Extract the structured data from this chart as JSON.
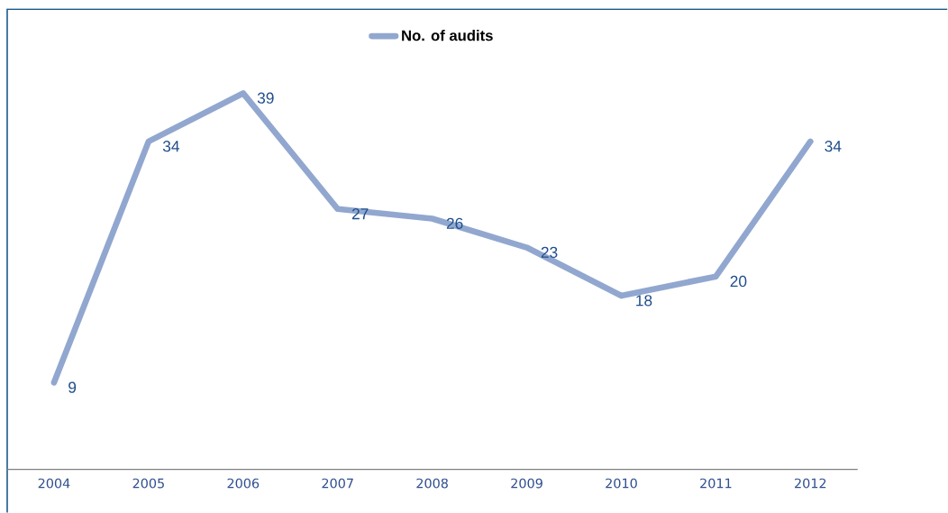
{
  "chart_data": {
    "type": "line",
    "categories": [
      "2004",
      "2005",
      "2006",
      "2007",
      "2008",
      "2009",
      "2010",
      "2011",
      "2012"
    ],
    "series": [
      {
        "name": "No. of audits",
        "color": "#91a7cf",
        "values": [
          9,
          34,
          39,
          27,
          26,
          23,
          18,
          20,
          34
        ]
      }
    ],
    "data_labels": true,
    "legend": "top",
    "tick_labels": "x",
    "line_style": "solid"
  }
}
